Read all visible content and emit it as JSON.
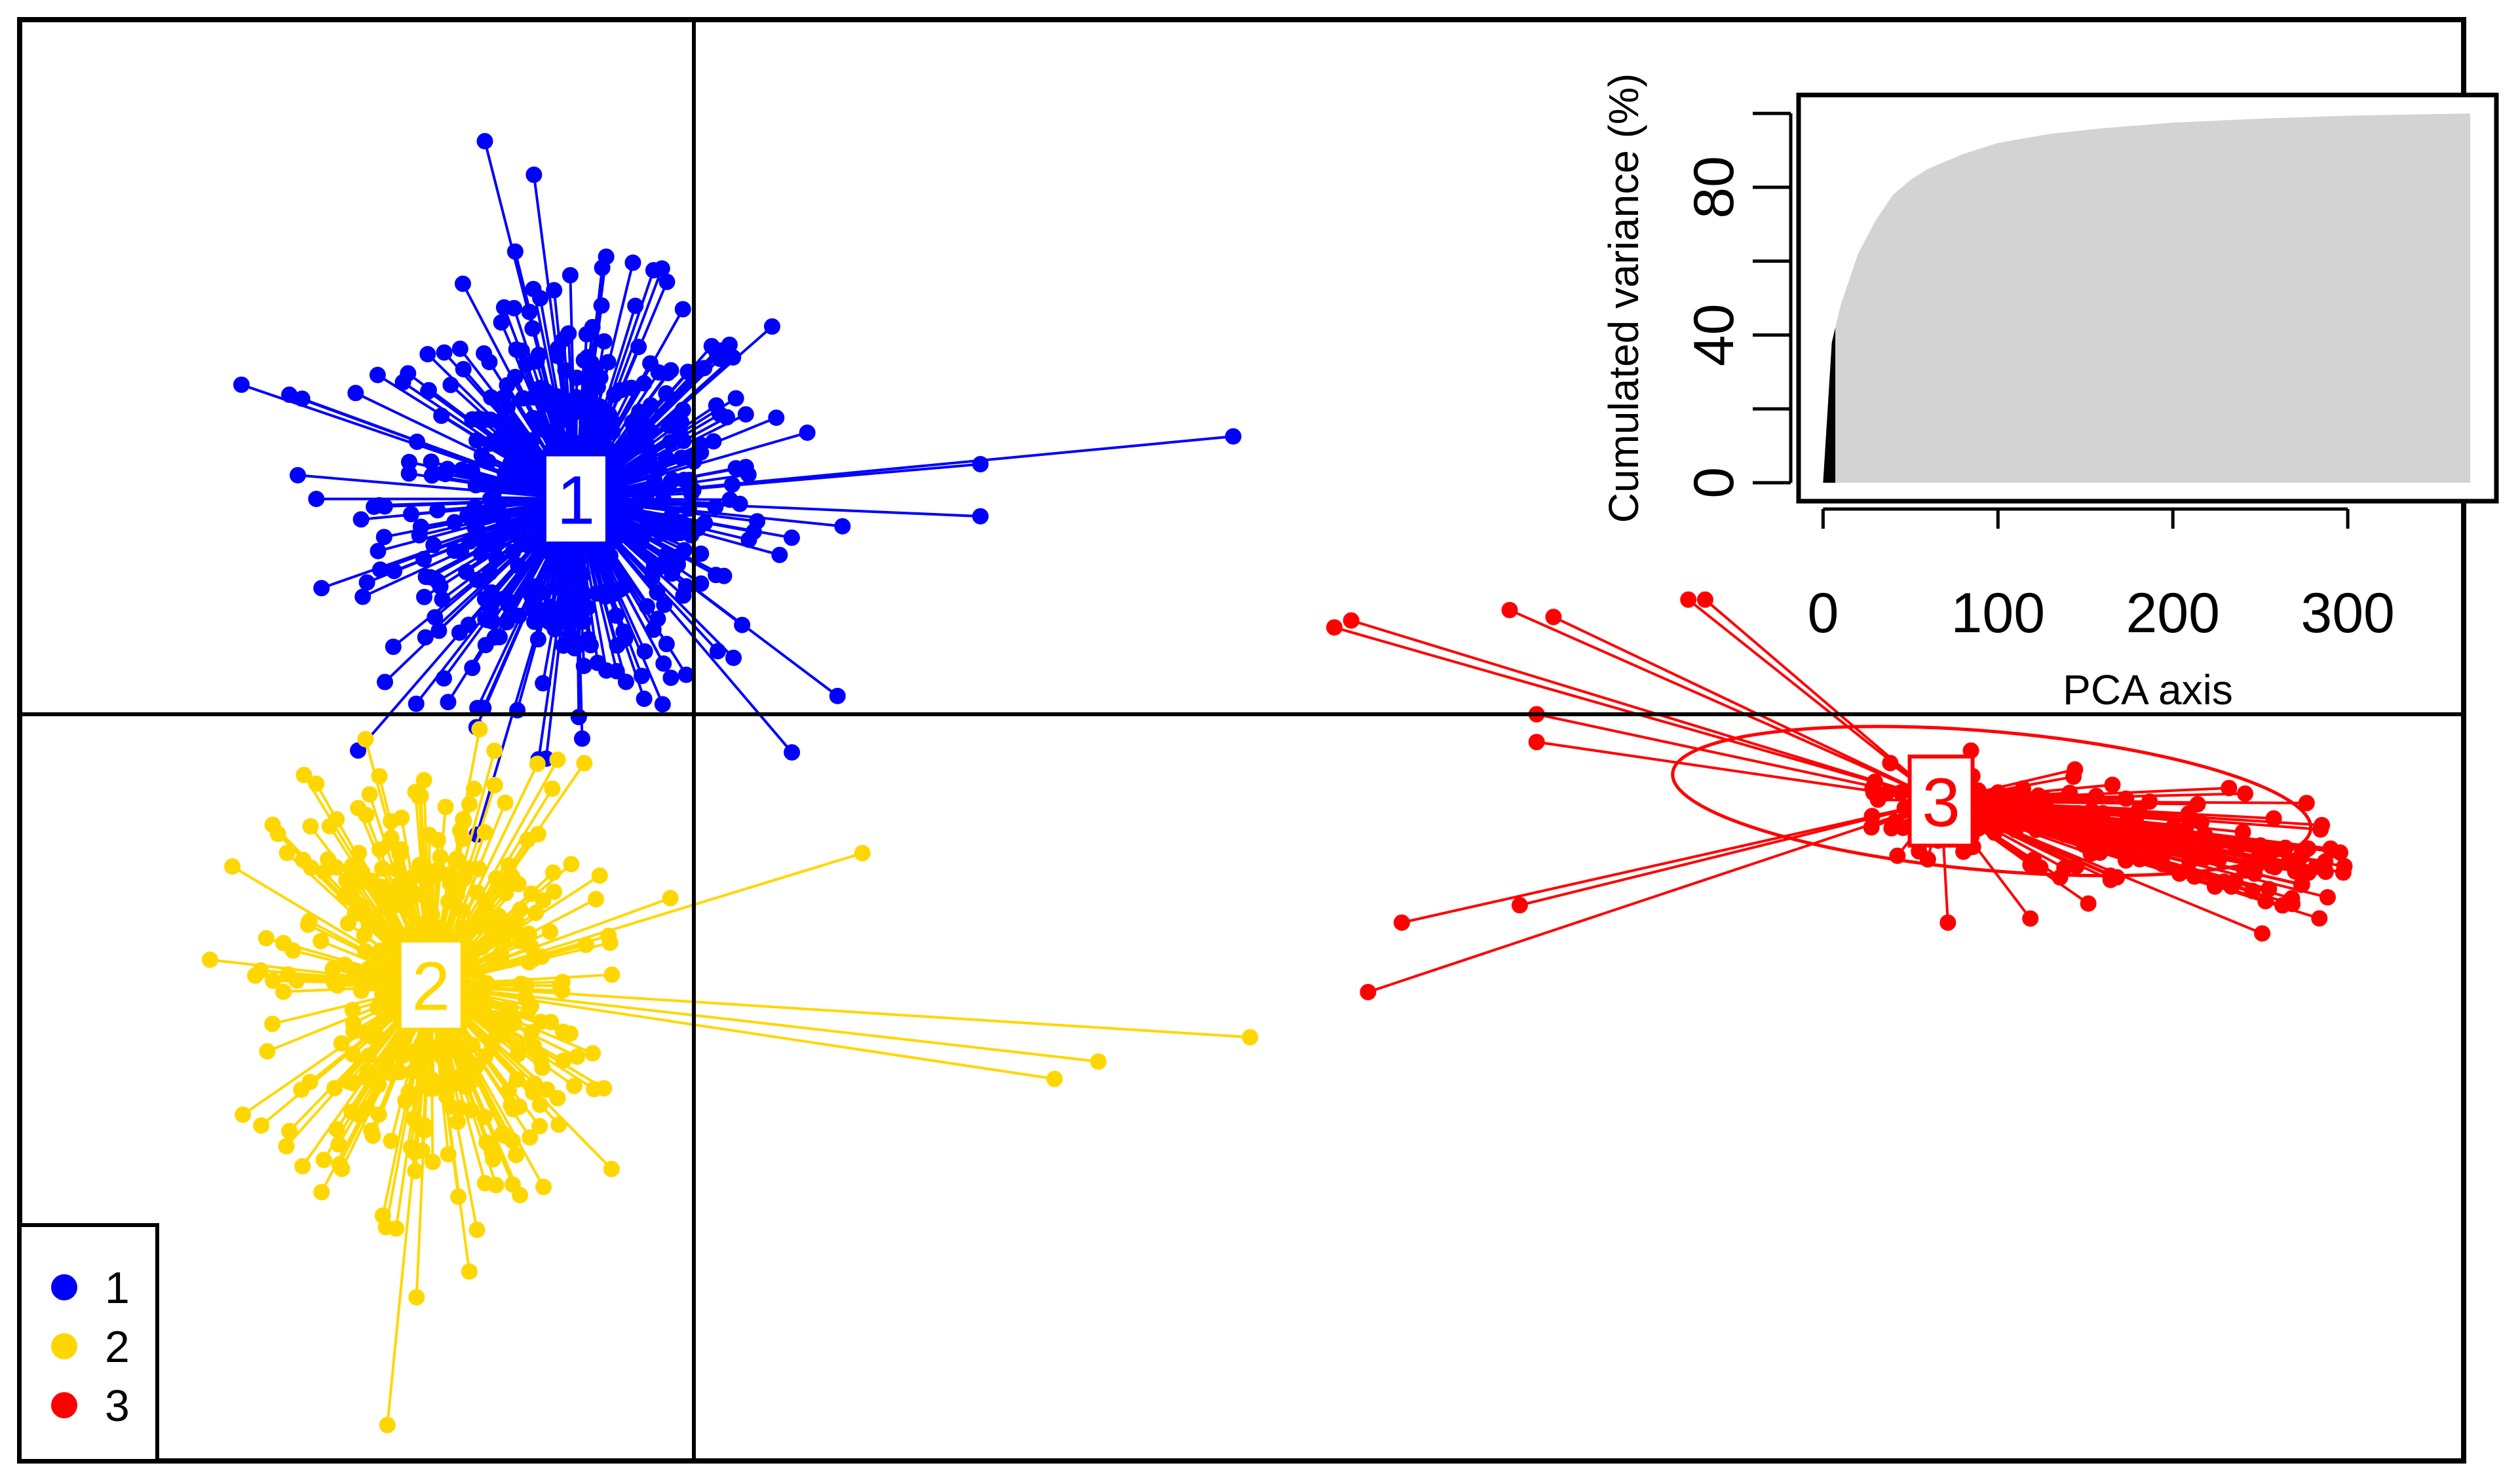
{
  "chart_data": [
    {
      "type": "scatter",
      "subtype": "discriminant-analysis-scatter",
      "grid": false,
      "axes_lines": "cross at origin",
      "legend_placement": "bottom-left",
      "legend": [
        {
          "label": "1",
          "color": "#0000ff"
        },
        {
          "label": "2",
          "color": "#ffd700"
        },
        {
          "label": "3",
          "color": "#ff0000"
        }
      ],
      "xlim": [
        -2.0,
        5.25
      ],
      "ylim": [
        -2.15,
        2.0
      ],
      "groups": [
        {
          "name": "1",
          "color": "#0000ff",
          "centroid": [
            -0.35,
            0.62
          ],
          "spread": [
            0.38,
            0.38
          ],
          "count": 520,
          "outliers": [
            [
              1.6,
              0.8
            ],
            [
              0.85,
              0.72
            ],
            [
              0.85,
              0.57
            ],
            [
              -1.2,
              0.92
            ],
            [
              -1.12,
              0.62
            ],
            [
              -0.62,
              1.65
            ]
          ],
          "ellipse": null
        },
        {
          "name": "2",
          "color": "#ffd700",
          "centroid": [
            -0.78,
            -0.78
          ],
          "spread": [
            0.3,
            0.42
          ],
          "count": 430,
          "outliers": [
            [
              1.65,
              -0.93
            ],
            [
              1.2,
              -1.0
            ],
            [
              1.07,
              -1.05
            ],
            [
              0.5,
              -0.4
            ],
            [
              -1.2,
              -1.2
            ],
            [
              -1.12,
              -0.2
            ]
          ],
          "ellipse": null
        },
        {
          "name": "3",
          "color": "#ff0000",
          "centroid": [
            3.7,
            -0.25
          ],
          "spread": [
            0.55,
            0.12
          ],
          "count": 190,
          "outliers": [
            [
              1.9,
              0.25
            ],
            [
              1.95,
              0.27
            ],
            [
              2.42,
              0.3
            ],
            [
              2.55,
              0.28
            ],
            [
              2.95,
              0.33
            ],
            [
              3.0,
              0.33
            ],
            [
              2.5,
              0.0
            ],
            [
              2.5,
              -0.08
            ],
            [
              2.1,
              -0.6
            ],
            [
              2.0,
              -0.8
            ],
            [
              2.45,
              -0.55
            ],
            [
              3.72,
              -0.6
            ],
            [
              4.6,
              -0.45
            ]
          ],
          "ellipse": {
            "cx": 3.85,
            "cy": -0.25,
            "rx": 0.95,
            "ry": 0.2,
            "angle_deg": -5
          }
        }
      ]
    },
    {
      "type": "area",
      "title": "",
      "xlabel": "PCA axis",
      "ylabel": "Cumulated variance (%)",
      "xlim": [
        -14,
        385
      ],
      "ylim": [
        -5,
        105
      ],
      "xticks": [
        0,
        100,
        200,
        300
      ],
      "yticks": [
        0,
        40,
        80
      ],
      "ytick_minor": [
        20,
        60,
        100
      ],
      "n_axes": 370,
      "retained_axes": 7,
      "retained_color": "#000000",
      "discarded_color": "#d3d3d3",
      "curve": {
        "x": [
          0,
          5,
          10,
          20,
          30,
          40,
          50,
          60,
          80,
          100,
          130,
          160,
          200,
          250,
          300,
          370
        ],
        "y": [
          0,
          38,
          48,
          62,
          71,
          78,
          82,
          85,
          89,
          92,
          94.5,
          96,
          97.5,
          98.6,
          99.4,
          100
        ]
      }
    }
  ]
}
